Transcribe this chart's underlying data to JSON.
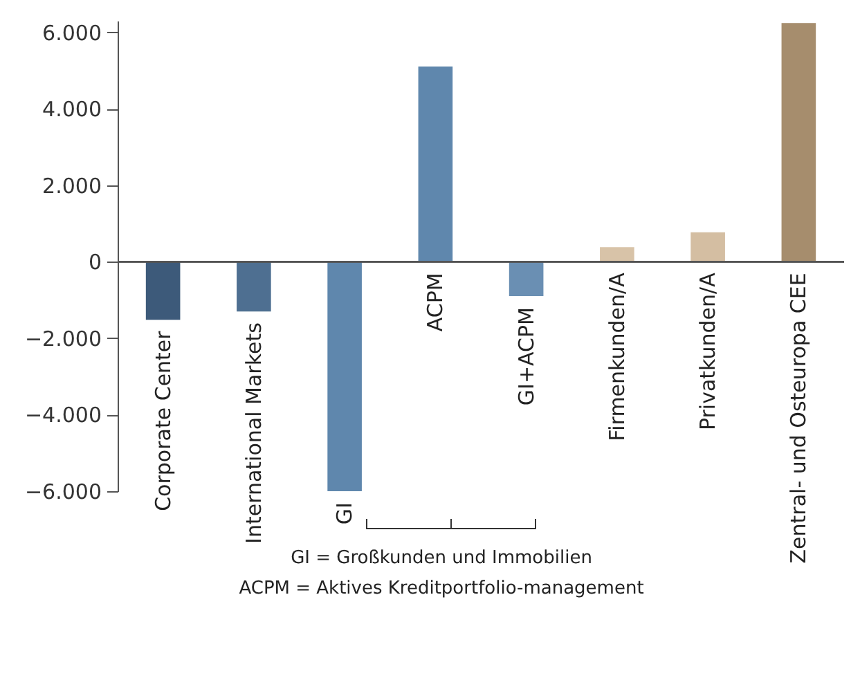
{
  "chart_data": {
    "type": "bar",
    "categories": [
      "Corporate Center",
      "International Markets",
      "GI",
      "ACPM",
      "GI+ACPM",
      "Firmenkunden/A",
      "Privatkunden/A",
      "Zentral- und Osteuropa CEE"
    ],
    "values": [
      -1520,
      -1300,
      -6000,
      5100,
      -900,
      380,
      770,
      6240
    ],
    "colors": [
      "#3d5a7a",
      "#4e6f91",
      "#5f87ad",
      "#5f87ad",
      "#6a8fb3",
      "#d8c3a8",
      "#d4bea2",
      "#a68d6d"
    ],
    "ylim": [
      -6000,
      6300
    ],
    "yticks": [
      {
        "value": -6000,
        "label": "−6.000"
      },
      {
        "value": -4000,
        "label": "−4.000"
      },
      {
        "value": -2000,
        "label": "−2.000"
      },
      0,
      {
        "value": 2000,
        "label": "2.000"
      },
      {
        "value": 4000,
        "label": "4.000"
      },
      {
        "value": 6000,
        "label": "6.000"
      }
    ],
    "grid": false,
    "annotations": [
      "GI = Großkunden und Immobilien",
      "ACPM = Aktives Kreditportfolio-management"
    ]
  }
}
